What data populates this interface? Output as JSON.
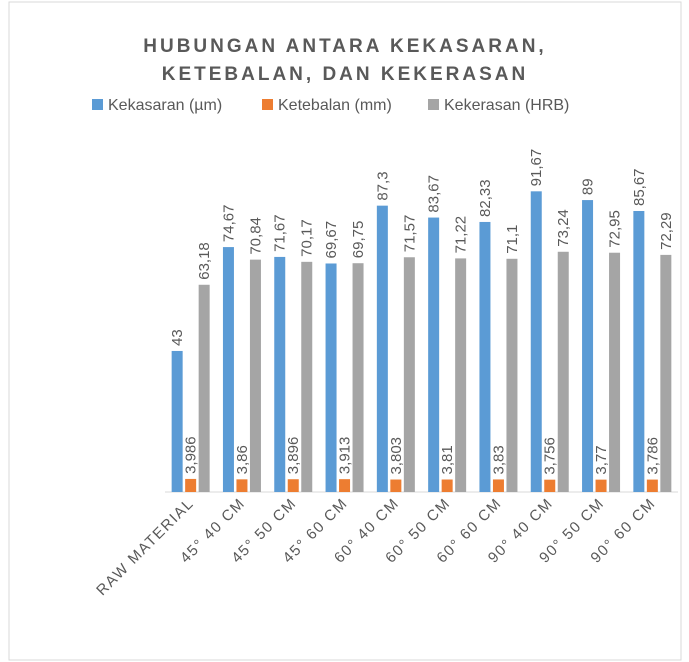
{
  "chart_data": {
    "type": "bar",
    "title": "HUBUNGAN ANTARA KEKASARAN,",
    "subtitle": "KETEBALAN, DAN KEKERASAN",
    "categories": [
      "RAW MATERIAL",
      "45° 40 CM",
      "45° 50 CM",
      "45° 60 CM",
      "60° 40 CM",
      "60° 50 CM",
      "60° 60 CM",
      "90° 40 CM",
      "90° 50 CM",
      "90° 60 CM"
    ],
    "ylim": [
      0,
      100
    ],
    "legend": "top",
    "series": [
      {
        "name": "Kekasaran (µm)",
        "color": "#5b9bd5",
        "values": [
          43,
          74.67,
          71.67,
          69.67,
          87.3,
          83.67,
          82.33,
          91.67,
          89,
          85.67
        ],
        "value_labels": [
          "43",
          "74,67",
          "71,67",
          "69,67",
          "87,3",
          "83,67",
          "82,33",
          "91,67",
          "89",
          "85,67"
        ]
      },
      {
        "name": "Ketebalan (mm)",
        "color": "#ed7d31",
        "values": [
          3.986,
          3.86,
          3.896,
          3.913,
          3.803,
          3.81,
          3.83,
          3.756,
          3.77,
          3.786
        ],
        "value_labels": [
          "3,986",
          "3,86",
          "3,896",
          "3,913",
          "3,803",
          "3,81",
          "3,83",
          "3,756",
          "3,77",
          "3,786"
        ]
      },
      {
        "name": "Kekerasan (HRB)",
        "color": "#a5a5a5",
        "values": [
          63.18,
          70.84,
          70.17,
          69.75,
          71.57,
          71.22,
          71.1,
          73.24,
          72.95,
          72.29
        ],
        "value_labels": [
          "63,18",
          "70,84",
          "70,17",
          "69,75",
          "71,57",
          "71,22",
          "71,1",
          "73,24",
          "72,95",
          "72,29"
        ]
      }
    ]
  }
}
